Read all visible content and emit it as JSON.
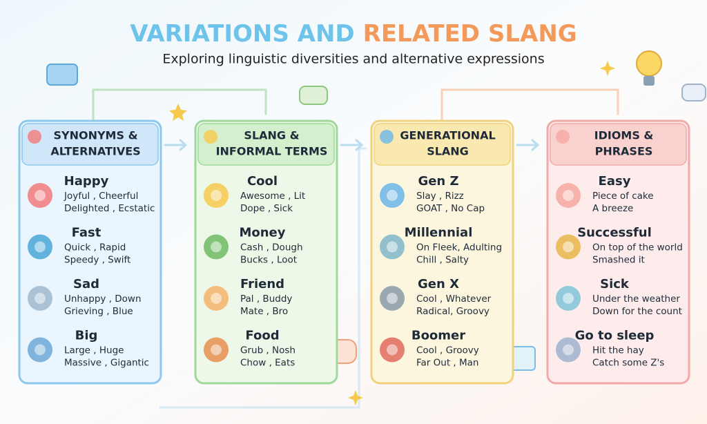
{
  "title": {
    "part1": "VARIATIONS AND",
    "part2": "RELATED SLANG"
  },
  "subtitle": "Exploring linguistic diversities and alternative expressions",
  "columns": [
    {
      "header": [
        "SYNONYMS &",
        "ALTERNATIVES"
      ],
      "items": [
        {
          "word": "Happy",
          "lines": [
            "Joyful , Cheerful",
            "Delighted , Ecstatic"
          ]
        },
        {
          "word": "Fast",
          "lines": [
            "Quick , Rapid",
            "Speedy , Swift"
          ]
        },
        {
          "word": "Sad",
          "lines": [
            "Unhappy , Down",
            "Grieving , Blue"
          ]
        },
        {
          "word": "Big",
          "lines": [
            "Large , Huge",
            "Massive , Gigantic"
          ]
        }
      ]
    },
    {
      "header": [
        "SLANG &",
        "INFORMAL TERMS"
      ],
      "items": [
        {
          "word": "Cool",
          "lines": [
            "Awesome , Lit",
            "Dope , Sick"
          ]
        },
        {
          "word": "Money",
          "lines": [
            "Cash , Dough",
            "Bucks , Loot"
          ]
        },
        {
          "word": "Friend",
          "lines": [
            "Pal , Buddy",
            "Mate , Bro"
          ]
        },
        {
          "word": "Food",
          "lines": [
            "Grub , Nosh",
            "Chow , Eats"
          ]
        }
      ]
    },
    {
      "header": [
        "GENERATIONAL",
        "SLANG"
      ],
      "items": [
        {
          "word": "Gen Z",
          "lines": [
            "Slay , Rizz",
            "GOAT , No Cap"
          ]
        },
        {
          "word": "Millennial",
          "lines": [
            "On Fleek, Adulting",
            "Chill , Salty"
          ]
        },
        {
          "word": "Gen X",
          "lines": [
            "Cool , Whatever",
            "Radical, Groovy"
          ]
        },
        {
          "word": "Boomer",
          "lines": [
            "Cool , Groovy",
            "Far Out , Man"
          ]
        }
      ]
    },
    {
      "header": [
        "IDIOMS &",
        "PHRASES"
      ],
      "items": [
        {
          "word": "Easy",
          "lines": [
            "Piece of cake",
            "A breeze"
          ]
        },
        {
          "word": "Successful",
          "lines": [
            "On top of the world",
            "Smashed it"
          ]
        },
        {
          "word": "Sick",
          "lines": [
            "Under the weather",
            "Down for the count"
          ]
        },
        {
          "word": "Go to sleep",
          "lines": [
            "Hit the hay",
            "Catch some Z's"
          ]
        }
      ]
    }
  ]
}
